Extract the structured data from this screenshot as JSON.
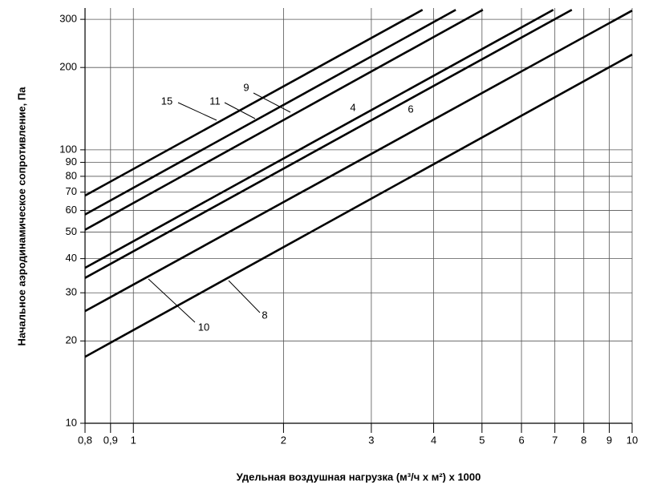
{
  "chart_data": {
    "type": "line",
    "x_label": "Удельная воздушная нагрузка (м³/ч х м²) х 1000",
    "y_label": "Начальное аэродинамическое сопротивление,  Па",
    "xscale": "log",
    "yscale": "log",
    "grid": true,
    "xlim": [
      0.8,
      10
    ],
    "ylim": [
      10,
      330
    ],
    "xticks": [
      {
        "value": 0.8,
        "label": "0,8"
      },
      {
        "value": 0.9,
        "label": "0,9"
      },
      1,
      2,
      3,
      4,
      5,
      6,
      7,
      8,
      9,
      10
    ],
    "yticks": [
      10,
      20,
      30,
      40,
      50,
      60,
      70,
      80,
      90,
      100,
      200,
      300
    ],
    "series": [
      {
        "name": "15",
        "color": "#000000",
        "x": [
          0.8,
          3.8
        ],
        "values": [
          68,
          325
        ]
      },
      {
        "name": "11",
        "color": "#000000",
        "x": [
          0.8,
          4.43
        ],
        "values": [
          58,
          325
        ]
      },
      {
        "name": "9",
        "color": "#000000",
        "x": [
          0.8,
          5.02
        ],
        "values": [
          51,
          325
        ]
      },
      {
        "name": "4",
        "color": "#000000",
        "x": [
          0.8,
          6.95
        ],
        "values": [
          37,
          325
        ]
      },
      {
        "name": "6",
        "color": "#000000",
        "x": [
          0.8,
          7.57
        ],
        "values": [
          34,
          325
        ]
      },
      {
        "name": "10",
        "color": "#000000",
        "x": [
          0.8,
          10
        ],
        "values": [
          25.7,
          323
        ]
      },
      {
        "name": "8",
        "color": "#000000",
        "x": [
          0.8,
          10
        ],
        "values": [
          17.5,
          223
        ]
      }
    ]
  }
}
